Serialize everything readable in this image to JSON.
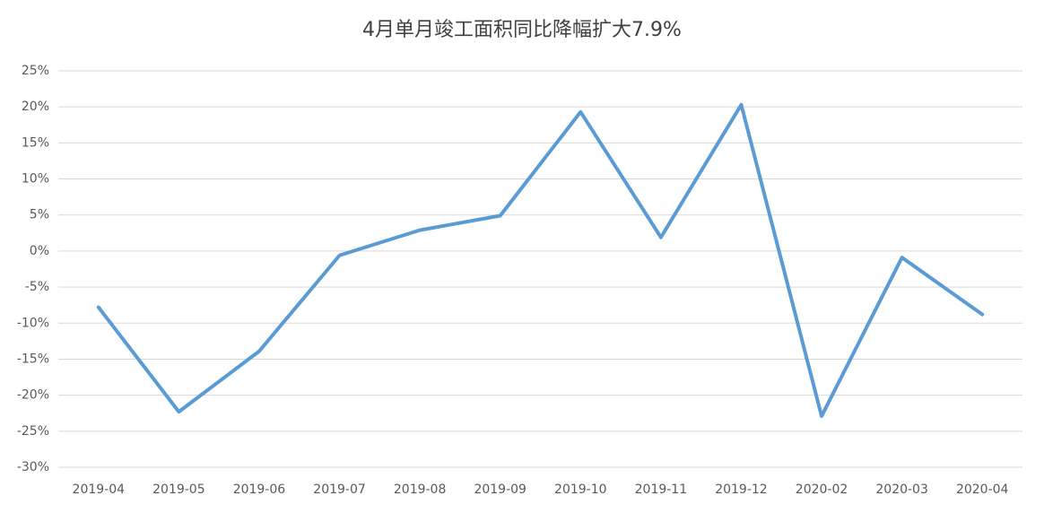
{
  "chart_data": {
    "type": "line",
    "title": "4月单月竣工面积同比降幅扩大7.9%",
    "categories": [
      "2019-04",
      "2019-05",
      "2019-06",
      "2019-07",
      "2019-08",
      "2019-09",
      "2019-10",
      "2019-11",
      "2019-12",
      "2020-02",
      "2020-03",
      "2020-04"
    ],
    "series": [
      {
        "name": "竣工面积同比",
        "color": "#5b9bd5",
        "values": [
          -7.8,
          -22.3,
          -13.9,
          -0.6,
          2.9,
          4.9,
          19.3,
          1.9,
          20.3,
          -22.9,
          -0.9,
          -8.8
        ]
      }
    ],
    "ylim": [
      -30,
      25
    ],
    "yticks": [
      {
        "value": -30,
        "label": "-30%"
      },
      {
        "value": -25,
        "label": "-25%"
      },
      {
        "value": -20,
        "label": "-20%"
      },
      {
        "value": -15,
        "label": "-15%"
      },
      {
        "value": -10,
        "label": "-10%"
      },
      {
        "value": -5,
        "label": "-5%"
      },
      {
        "value": 0,
        "label": "0%"
      },
      {
        "value": 5,
        "label": "5%"
      },
      {
        "value": 10,
        "label": "10%"
      },
      {
        "value": 15,
        "label": "15%"
      },
      {
        "value": 20,
        "label": "20%"
      },
      {
        "value": 25,
        "label": "25%"
      }
    ],
    "grid": true
  }
}
